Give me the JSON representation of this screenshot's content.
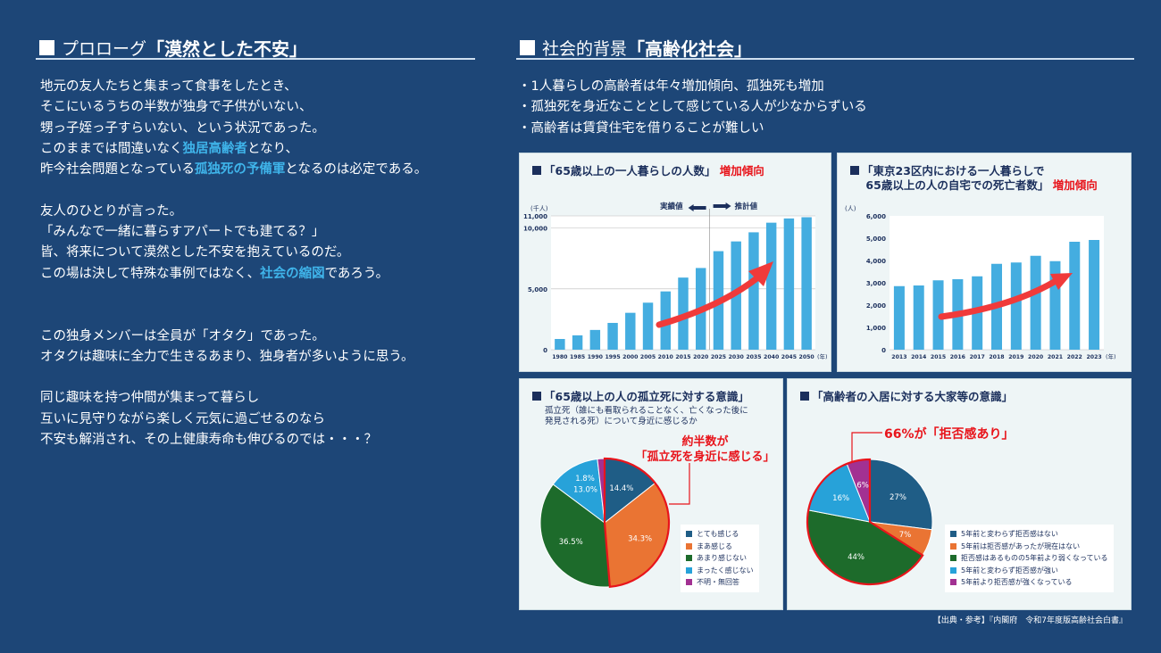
{
  "colors": {
    "background": "#1d4677",
    "highlight_text": "#3fb4ea",
    "accent_red": "#e8141b",
    "bar": "#44ade0",
    "navy": "#1b2f5c"
  },
  "left": {
    "heading_prefix": "プロローグ",
    "heading_title": "「漠然とした不安」",
    "lines": [
      [
        {
          "text": "地元の友人たちと集まって食事をしたとき、",
          "highlight": false
        }
      ],
      [
        {
          "text": "そこにいるうちの半数が独身で子供がいない、",
          "highlight": false
        }
      ],
      [
        {
          "text": "甥っ子姪っ子すらいない、という状況であった。",
          "highlight": false
        }
      ],
      [
        {
          "text": "このままでは間違いなく",
          "highlight": false
        },
        {
          "text": "独居高齢者",
          "highlight": true
        },
        {
          "text": "となり、",
          "highlight": false
        }
      ],
      [
        {
          "text": "昨今社会問題となっている",
          "highlight": false
        },
        {
          "text": "孤独死の予備軍",
          "highlight": true
        },
        {
          "text": "となるのは必定である。",
          "highlight": false
        }
      ],
      [],
      [
        {
          "text": "友人のひとりが言った。",
          "highlight": false
        }
      ],
      [
        {
          "text": "「みんなで一緒に暮らすアパートでも建てる？」",
          "highlight": false
        }
      ],
      [
        {
          "text": "皆、将来について漠然とした不安を抱えているのだ。",
          "highlight": false
        }
      ],
      [
        {
          "text": "この場は決して特殊な事例ではなく、",
          "highlight": false
        },
        {
          "text": "社会の縮図",
          "highlight": true
        },
        {
          "text": "であろう。",
          "highlight": false
        }
      ],
      [],
      [],
      [
        {
          "text": "この独身メンバーは全員が「オタク」であった。",
          "highlight": false
        }
      ],
      [
        {
          "text": "オタクは趣味に全力で生きるあまり、独身者が多いように思う。",
          "highlight": false
        }
      ],
      [],
      [
        {
          "text": "同じ趣味を持つ仲間が集まって暮らし",
          "highlight": false
        }
      ],
      [
        {
          "text": "互いに見守りながら楽しく元気に過ごせるのなら",
          "highlight": false
        }
      ],
      [
        {
          "text": "不安も解消され、その上健康寿命も伸びるのでは・・・？",
          "highlight": false
        }
      ]
    ]
  },
  "right": {
    "heading_prefix": "社会的背景",
    "heading_title": "「高齢化社会」",
    "bullets": [
      "・1人暮らしの高齢者は年々増加傾向、孤独死も増加",
      "・孤独死を身近なこととして感じている人が少なからずいる",
      "・高齢者は賃貸住宅を借りることが難しい"
    ]
  },
  "chart_data": [
    {
      "type": "bar",
      "title": "「65歳以上の一人暮らしの人数」",
      "tag": "増加傾向",
      "ylabel": "(千人)",
      "xunit": "(年)",
      "categories": [
        "1980",
        "1985",
        "1990",
        "1995",
        "2000",
        "2005",
        "2010",
        "2015",
        "2020",
        "2025",
        "2030",
        "2035",
        "2040",
        "2045",
        "2050"
      ],
      "values": [
        881,
        1181,
        1623,
        2202,
        3032,
        3865,
        4791,
        5928,
        6716,
        8100,
        8900,
        9650,
        10440,
        10790,
        10890
      ],
      "ylim": [
        0,
        11000
      ],
      "yticks": [
        0,
        5000,
        10000,
        11000
      ],
      "ytick_labels": [
        "0",
        "5,000",
        "10,000",
        "11,000"
      ],
      "actual_label": "実績値",
      "projected_label": "推計値",
      "projection_start": "2025",
      "grid": true
    },
    {
      "type": "bar",
      "title_lines": [
        "「東京23区内における一人暮らしで",
        "65歳以上の人の自宅での死亡者数」"
      ],
      "tag": "増加傾向",
      "ylabel": "(人)",
      "xunit": "(年)",
      "categories": [
        "2013",
        "2014",
        "2015",
        "2016",
        "2017",
        "2018",
        "2019",
        "2020",
        "2021",
        "2022",
        "2023"
      ],
      "values": [
        2850,
        2880,
        3110,
        3160,
        3290,
        3850,
        3910,
        4210,
        3970,
        4840,
        4920
      ],
      "ylim": [
        0,
        6000
      ],
      "yticks": [
        0,
        1000,
        2000,
        3000,
        4000,
        5000,
        6000
      ],
      "ytick_labels": [
        "0",
        "1,000",
        "2,000",
        "3,000",
        "4,000",
        "5,000",
        "6,000"
      ],
      "grid": false
    },
    {
      "type": "pie",
      "title": "「65歳以上の人の孤立死に対する意識」",
      "subtitle_lines": [
        "孤立死（誰にも看取られることなく、亡くなった後に",
        "発見される死）について身近に感じるか"
      ],
      "callout_lines": [
        "約半数が",
        "「孤立死を身近に感じる」"
      ],
      "labels": [
        "とても感じる",
        "まあ感じる",
        "あまり感じない",
        "まったく感じない",
        "不明・無回答"
      ],
      "values": [
        14.4,
        34.3,
        36.5,
        13.0,
        1.8
      ],
      "value_labels": [
        "14.4%",
        "34.3%",
        "36.5%",
        "13.0%",
        "1.8%"
      ],
      "colors": [
        "#1f5d86",
        "#ea7433",
        "#1d6b2b",
        "#27a2d9",
        "#a23192"
      ],
      "highlight_slices": [
        0,
        1
      ],
      "legend": "right"
    },
    {
      "type": "pie",
      "title": "「高齢者の入居に対する大家等の意識」",
      "callout_lines": [
        "66%が「拒否感あり」"
      ],
      "labels": [
        "5年前と変わらず拒否感はない",
        "5年前は拒否感があったが現在はない",
        "拒否感はあるものの5年前より弱くなっている",
        "5年前と変わらず拒否感が強い",
        "5年前より拒否感が強くなっている"
      ],
      "values": [
        27,
        7,
        44,
        16,
        6
      ],
      "value_labels": [
        "27%",
        "7%",
        "44%",
        "16%",
        "6%"
      ],
      "colors": [
        "#1f5d86",
        "#ea7433",
        "#1d6b2b",
        "#27a2d9",
        "#a23192"
      ],
      "highlight_slices": [
        2,
        3,
        4
      ],
      "legend": "right"
    }
  ],
  "footer": "【出典・参考】『内閣府　令和7年度版高齢社会白書』"
}
